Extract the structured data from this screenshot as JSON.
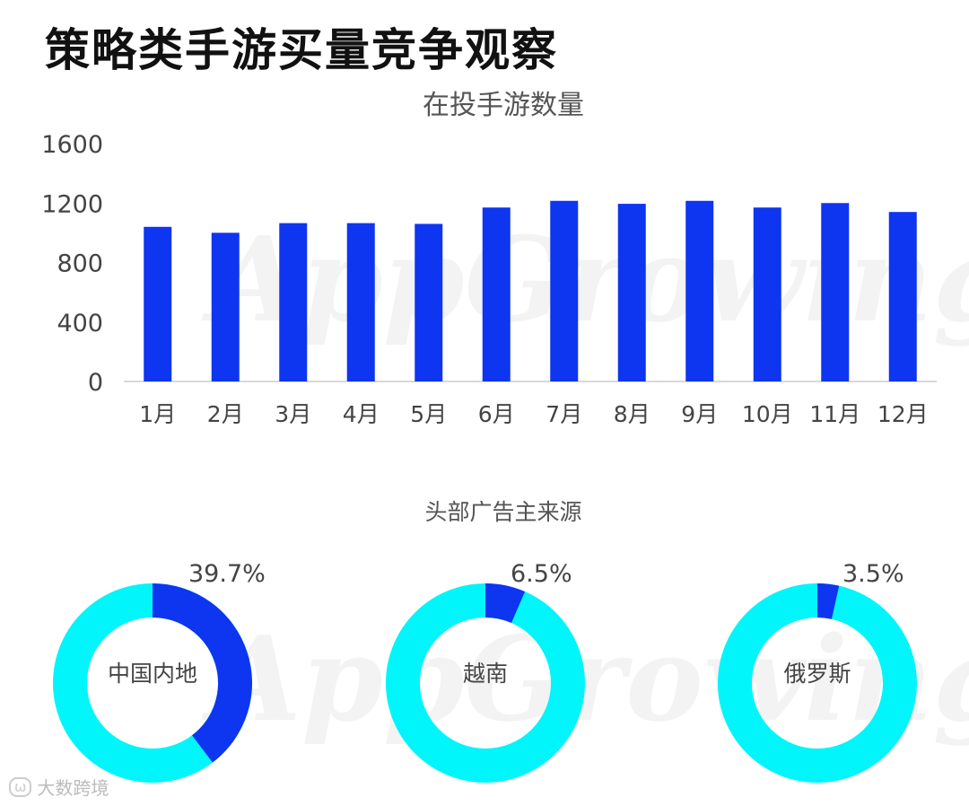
{
  "page_title": "策略类手游买量竞争观察",
  "footer": {
    "logo_mark": "ω",
    "brand": "大数跨境"
  },
  "watermark_text": "AppGrowing",
  "colors": {
    "bar": "#0e35f0",
    "ring_bg": "#00f6fa",
    "ring_fg": "#0e35f0",
    "axis": "#d9d9d9"
  },
  "chart_data": [
    {
      "type": "bar",
      "title": "在投手游数量",
      "categories": [
        "1月",
        "2月",
        "3月",
        "4月",
        "5月",
        "6月",
        "7月",
        "8月",
        "9月",
        "10月",
        "11月",
        "12月"
      ],
      "values": [
        1040,
        1000,
        1065,
        1065,
        1060,
        1170,
        1215,
        1195,
        1215,
        1170,
        1200,
        1140
      ],
      "ylim": [
        0,
        1600
      ],
      "yticks": [
        "0",
        "400",
        "800",
        "1200",
        "1600"
      ],
      "grid": false
    },
    {
      "type": "pie",
      "title": "头部广告主来源",
      "donuts": [
        {
          "name": "中国内地",
          "value": 39.7,
          "label": "39.7%"
        },
        {
          "name": "越南",
          "value": 6.5,
          "label": "6.5%"
        },
        {
          "name": "俄罗斯",
          "value": 3.5,
          "label": "3.5%"
        }
      ]
    }
  ]
}
